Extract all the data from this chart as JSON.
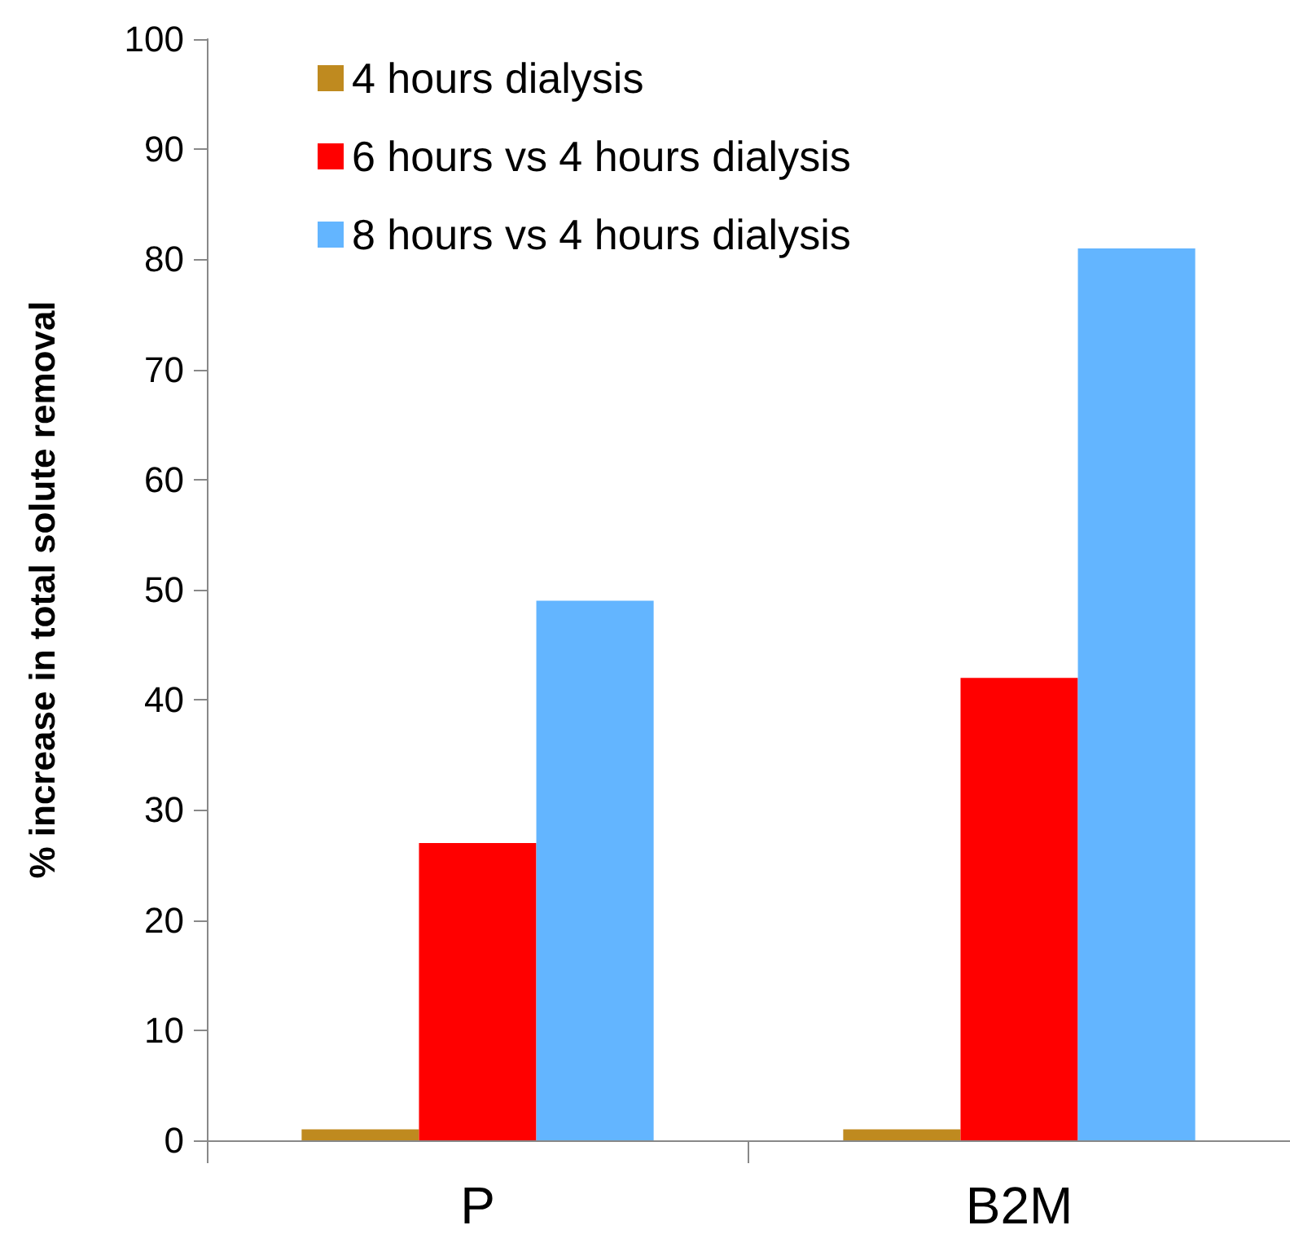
{
  "chart_data": {
    "type": "bar",
    "ylabel": "% increase in total solute removal",
    "categories": [
      "P",
      "B2M"
    ],
    "series": [
      {
        "name": "4 hours dialysis",
        "color": "#bf8a1f",
        "values": [
          1,
          1
        ]
      },
      {
        "name": "6 hours vs 4 hours dialysis",
        "color": "#ff0000",
        "values": [
          27,
          42
        ]
      },
      {
        "name": "8 hours vs 4 hours dialysis",
        "color": "#63b5ff",
        "values": [
          49,
          81
        ]
      }
    ],
    "ylim": [
      0,
      100
    ],
    "yticks": [
      0,
      10,
      20,
      30,
      40,
      50,
      60,
      70,
      80,
      90,
      100
    ],
    "grid": false,
    "legend": "top left"
  }
}
